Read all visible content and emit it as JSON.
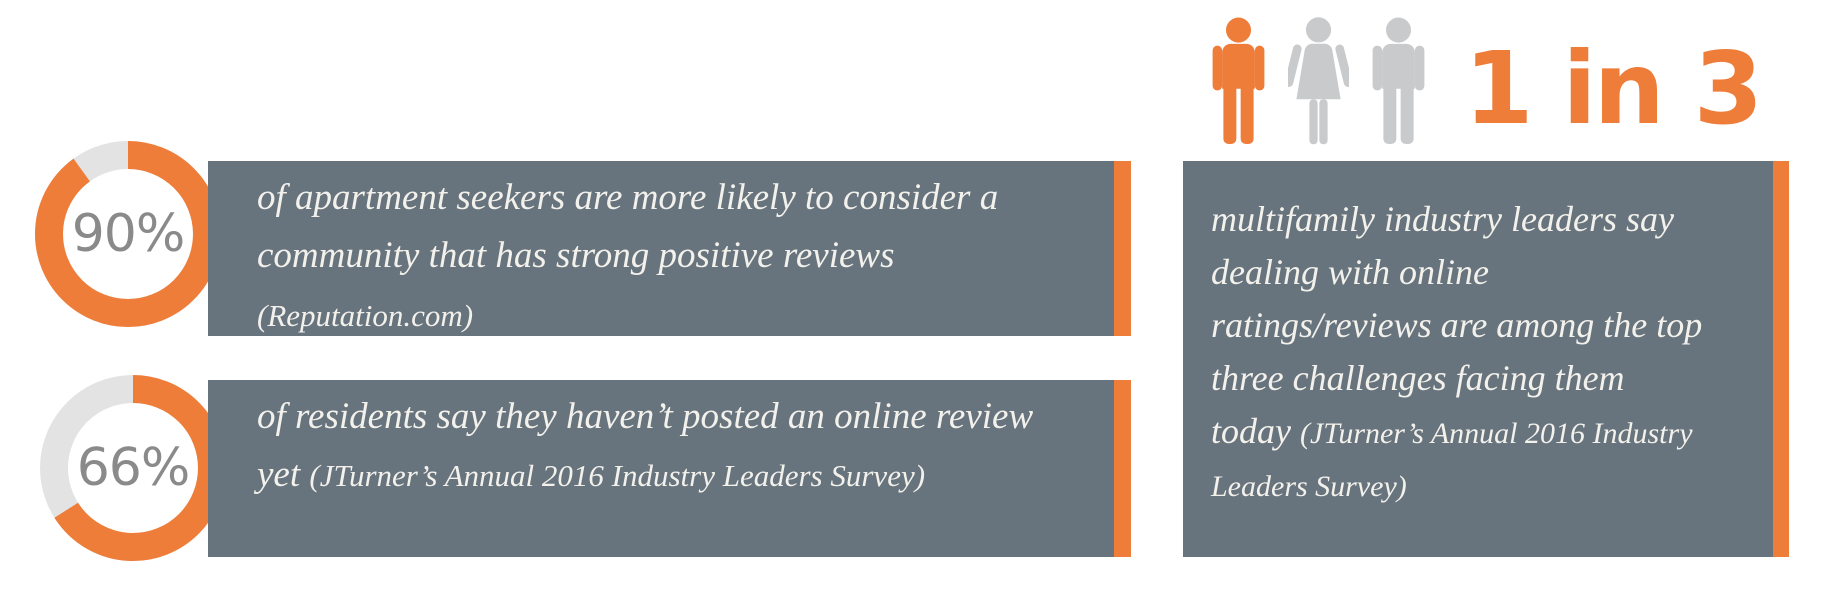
{
  "colors": {
    "accent_orange": "#ef7d3a",
    "box_slate": "#68747d",
    "donut_track_gray": "#e3e3e3",
    "donut_label_gray": "#8a8a8a",
    "icon_gray": "#c8cacc",
    "text_cream": "#f3f1ec"
  },
  "charts": [
    {
      "percent": 90,
      "label": "90%",
      "segments": [
        {
          "text": "of apartment seekers are more likely to consider a community that has strong positive reviews ",
          "small": false
        },
        {
          "text": "(Reputation.com)",
          "small": true
        }
      ]
    },
    {
      "percent": 66,
      "label": "66%",
      "segments": [
        {
          "text": "of residents say they haven’t posted an online review yet ",
          "small": false
        },
        {
          "text": "(JTurner’s Annual 2016 Industry Leaders Survey)",
          "small": true
        }
      ]
    }
  ],
  "highlight": {
    "ratio_label": "1 in 3",
    "icons": [
      "male-orange",
      "female-gray",
      "male-gray"
    ],
    "segments": [
      {
        "text": "multifamily industry leaders say dealing with online ratings/reviews are among the top three challenges facing them today ",
        "small": false
      },
      {
        "text": "(JTurner’s Annual 2016 Industry Leaders Survey)",
        "small": true
      }
    ]
  },
  "chart_data": [
    {
      "type": "pie",
      "subtype": "donut",
      "values": [
        90,
        10
      ],
      "labels": [
        "90%",
        "remainder"
      ],
      "center_label": "90%",
      "colors": [
        "#ef7d3a",
        "#e3e3e3"
      ],
      "caption": "of apartment seekers are more likely to consider a community that has strong positive reviews (Reputation.com)"
    },
    {
      "type": "pie",
      "subtype": "donut",
      "values": [
        66,
        34
      ],
      "labels": [
        "66%",
        "remainder"
      ],
      "center_label": "66%",
      "colors": [
        "#ef7d3a",
        "#e3e3e3"
      ],
      "caption": "of residents say they haven’t posted an online review yet (JTurner’s Annual 2016 Industry Leaders Survey)"
    },
    {
      "type": "pictograph",
      "title": "1 in 3",
      "value": 1,
      "total": 3,
      "highlighted_icons": 1,
      "icon_count": 3,
      "caption": "multifamily industry leaders say dealing with online ratings/reviews are among the top three challenges facing them today (JTurner’s Annual 2016 Industry Leaders Survey)"
    }
  ]
}
